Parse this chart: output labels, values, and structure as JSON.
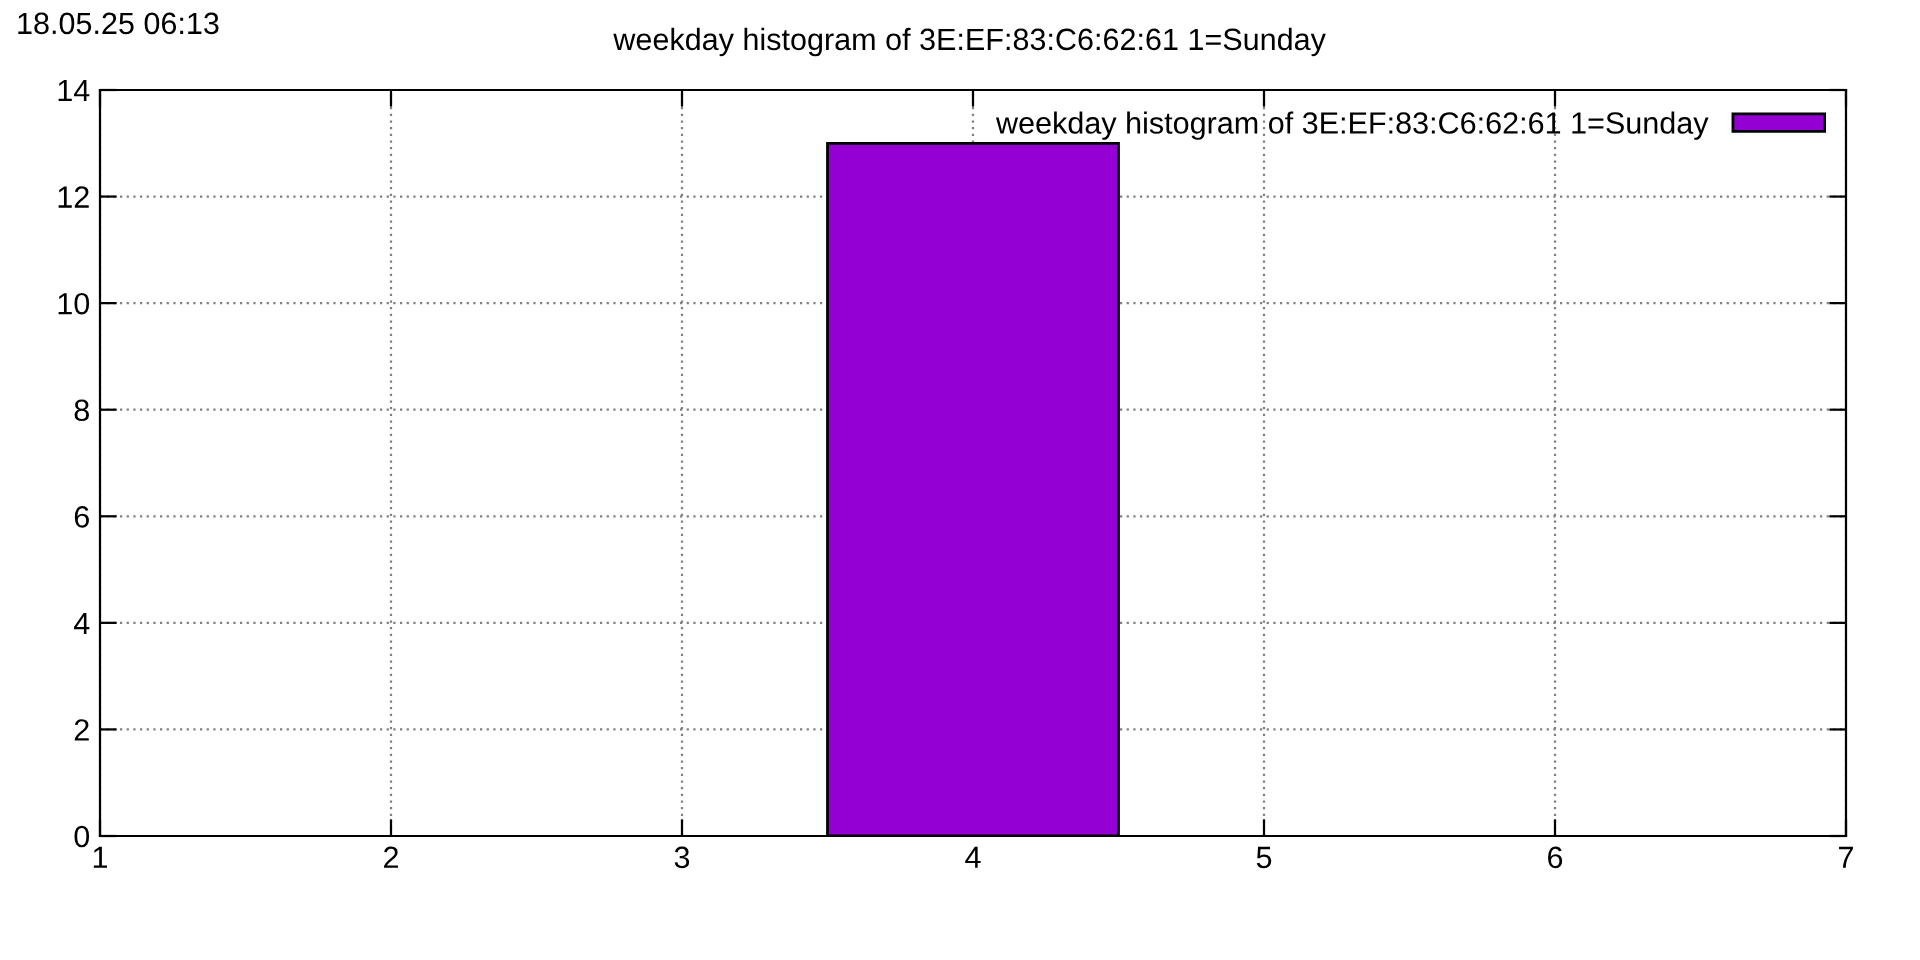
{
  "chart_data": {
    "type": "histogram",
    "title": "weekday histogram of 3E:EF:83:C6:62:61 1=Sunday",
    "annotations": [
      "18.05.25 06:13"
    ],
    "bins": [
      3.5,
      4.5
    ],
    "series": [
      {
        "name": "weekday histogram of 3E:EF:83:C6:62:61 1=Sunday",
        "color": "#9400d3",
        "values": [
          13
        ]
      }
    ],
    "xlim": [
      1,
      7
    ],
    "xticks": [
      1,
      2,
      3,
      4,
      5,
      6,
      7
    ],
    "ylim": [
      0,
      14
    ],
    "yticks": [
      0,
      2,
      4,
      6,
      8,
      10,
      12,
      14
    ],
    "grid": true,
    "legend": "top right"
  }
}
